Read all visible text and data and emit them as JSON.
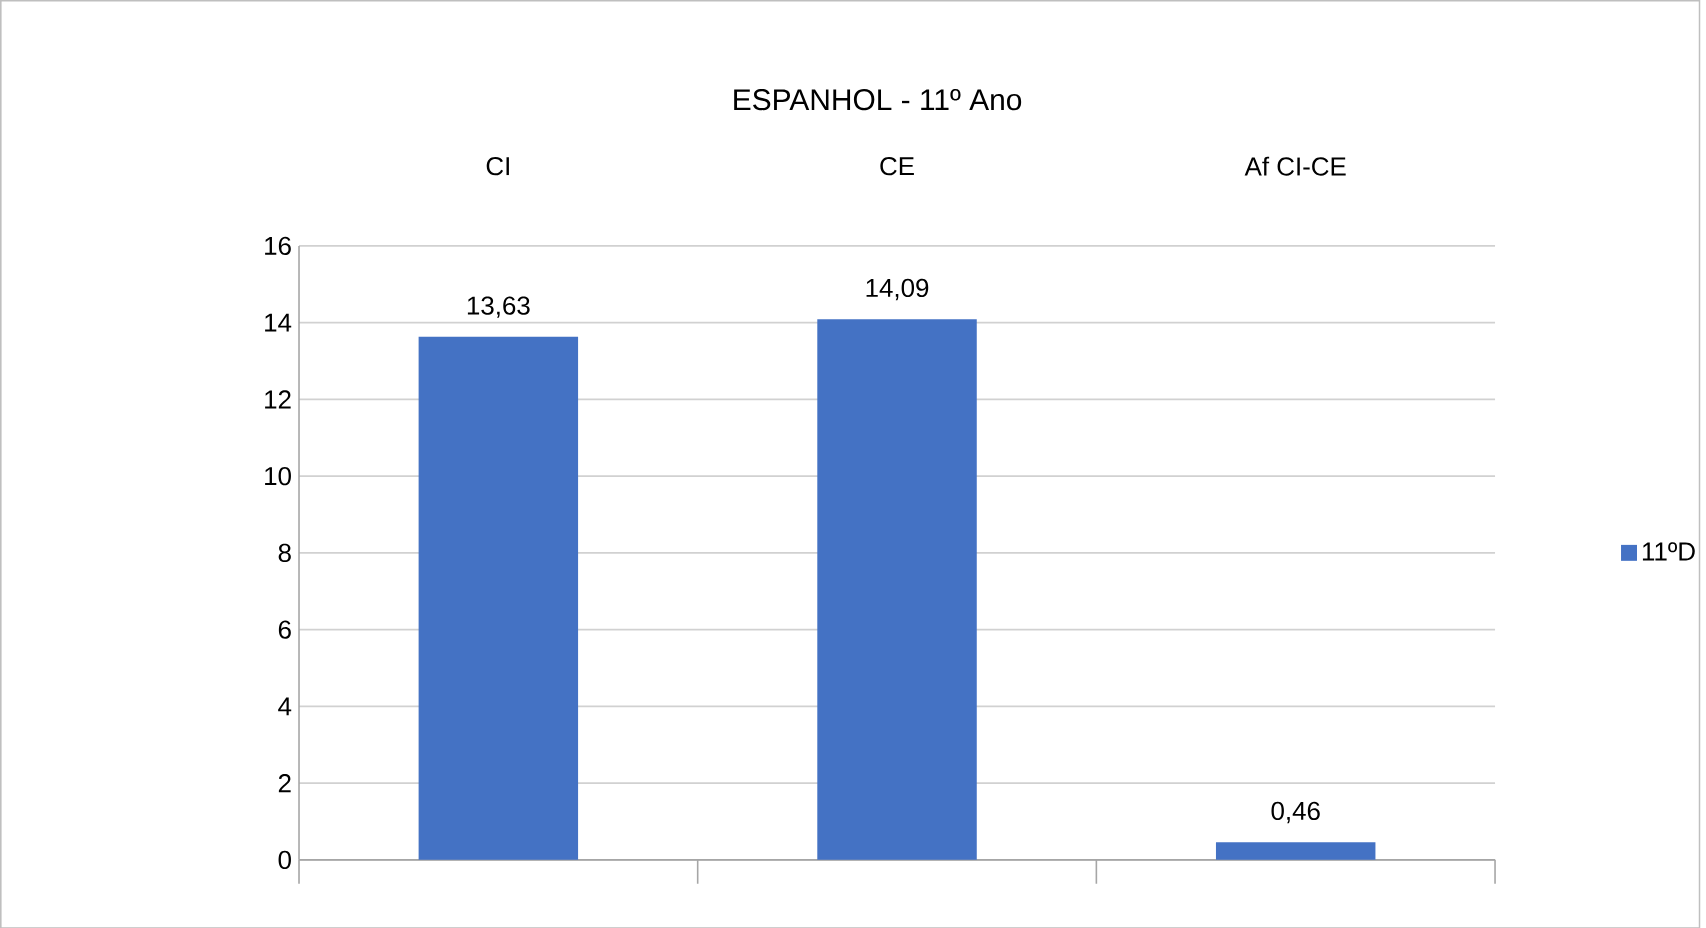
{
  "chart_data": {
    "type": "bar",
    "title": "ESPANHOL - 11º Ano",
    "categories": [
      "CI",
      "CE",
      "Af CI-CE"
    ],
    "series": [
      {
        "name": "11ºD",
        "color": "#4472c4",
        "values": [
          13.63,
          14.09,
          0.46
        ],
        "value_labels": [
          "13,63",
          "14,09",
          "0,46"
        ]
      }
    ],
    "ylim": [
      0,
      16
    ],
    "yticks": [
      0,
      2,
      4,
      6,
      8,
      10,
      12,
      14,
      16
    ],
    "grid": "y",
    "legend": "right"
  }
}
